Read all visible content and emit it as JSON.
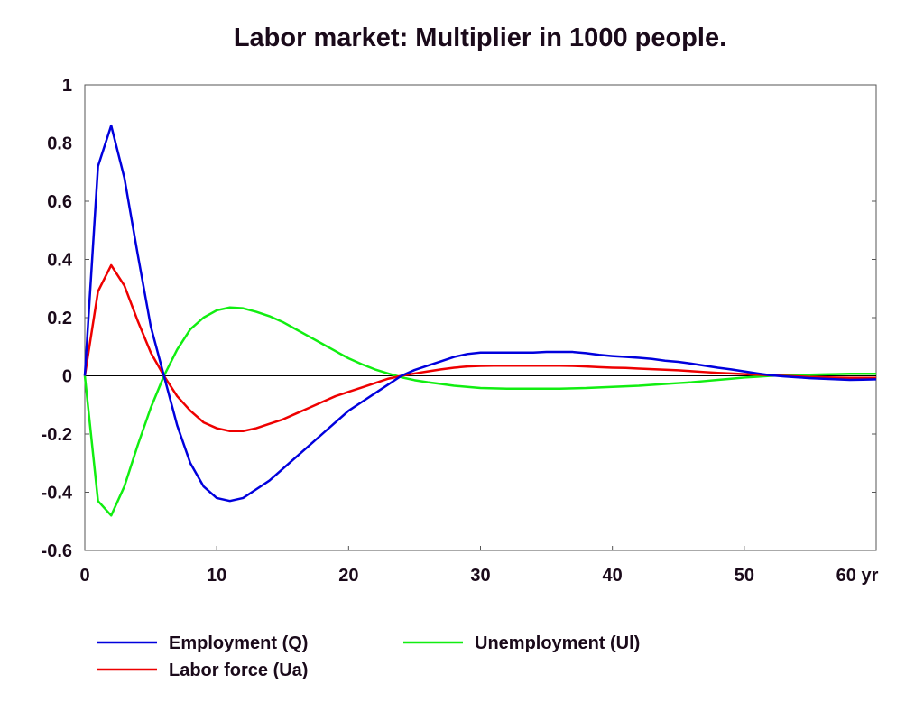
{
  "chart_data": {
    "type": "line",
    "title": "Labor market: Multiplier in 1000 people.",
    "x_unit_label": "yr",
    "xlim": [
      0,
      60
    ],
    "ylim": [
      -0.6,
      1
    ],
    "x_ticks": [
      0,
      10,
      20,
      30,
      40,
      50,
      60
    ],
    "x_tick_labels": [
      "0",
      "10",
      "20",
      "30",
      "40",
      "50",
      "60 yr"
    ],
    "y_ticks": [
      1,
      0.8,
      0.6,
      0.4,
      0.2,
      0,
      -0.2,
      -0.4,
      -0.6
    ],
    "y_tick_labels": [
      "1",
      "0.8",
      "0.6",
      "0.4",
      "0.2",
      "0",
      "-0.2",
      "-0.4",
      "-0.6"
    ],
    "zero_line": true,
    "grid": false,
    "legend_position": "bottom",
    "x": [
      0,
      1,
      2,
      3,
      4,
      5,
      6,
      7,
      8,
      9,
      10,
      11,
      12,
      13,
      14,
      15,
      16,
      17,
      18,
      19,
      20,
      21,
      22,
      23,
      24,
      25,
      26,
      27,
      28,
      29,
      30,
      31,
      32,
      33,
      34,
      35,
      36,
      37,
      38,
      39,
      40,
      41,
      42,
      43,
      44,
      45,
      46,
      47,
      48,
      49,
      50,
      51,
      52,
      53,
      54,
      55,
      56,
      57,
      58,
      59,
      60
    ],
    "series": [
      {
        "name": "Employment (Q)",
        "color": "#0000dd",
        "values": [
          0,
          0.72,
          0.86,
          0.68,
          0.42,
          0.17,
          0.0,
          -0.17,
          -0.3,
          -0.38,
          -0.42,
          -0.43,
          -0.42,
          -0.39,
          -0.36,
          -0.32,
          -0.28,
          -0.24,
          -0.2,
          -0.16,
          -0.12,
          -0.09,
          -0.06,
          -0.03,
          0.0,
          0.02,
          0.035,
          0.05,
          0.065,
          0.075,
          0.08,
          0.08,
          0.08,
          0.08,
          0.08,
          0.082,
          0.082,
          0.082,
          0.078,
          0.072,
          0.068,
          0.065,
          0.062,
          0.058,
          0.052,
          0.048,
          0.042,
          0.035,
          0.028,
          0.022,
          0.015,
          0.008,
          0.002,
          -0.002,
          -0.005,
          -0.008,
          -0.01,
          -0.012,
          -0.014,
          -0.013,
          -0.012
        ]
      },
      {
        "name": "Labor force (Ua)",
        "color": "#ee0000",
        "values": [
          0,
          0.29,
          0.38,
          0.31,
          0.19,
          0.08,
          0.0,
          -0.07,
          -0.12,
          -0.16,
          -0.18,
          -0.19,
          -0.19,
          -0.18,
          -0.165,
          -0.15,
          -0.13,
          -0.11,
          -0.09,
          -0.07,
          -0.055,
          -0.04,
          -0.025,
          -0.01,
          0.0,
          0.008,
          0.015,
          0.022,
          0.028,
          0.032,
          0.034,
          0.035,
          0.035,
          0.035,
          0.035,
          0.035,
          0.035,
          0.034,
          0.032,
          0.03,
          0.028,
          0.027,
          0.025,
          0.023,
          0.021,
          0.019,
          0.016,
          0.013,
          0.01,
          0.008,
          0.006,
          0.004,
          0.002,
          0.0,
          -0.002,
          -0.004,
          -0.005,
          -0.006,
          -0.007,
          -0.007,
          -0.007
        ]
      },
      {
        "name": "Unemployment (Ul)",
        "color": "#11ee11",
        "values": [
          0,
          -0.43,
          -0.48,
          -0.38,
          -0.24,
          -0.11,
          0.0,
          0.09,
          0.16,
          0.2,
          0.225,
          0.235,
          0.232,
          0.22,
          0.205,
          0.185,
          0.16,
          0.135,
          0.11,
          0.085,
          0.06,
          0.04,
          0.022,
          0.008,
          -0.005,
          -0.015,
          -0.022,
          -0.028,
          -0.034,
          -0.038,
          -0.042,
          -0.043,
          -0.044,
          -0.044,
          -0.044,
          -0.044,
          -0.044,
          -0.043,
          -0.042,
          -0.04,
          -0.038,
          -0.036,
          -0.034,
          -0.031,
          -0.028,
          -0.025,
          -0.022,
          -0.018,
          -0.014,
          -0.01,
          -0.006,
          -0.003,
          0.0,
          0.002,
          0.003,
          0.004,
          0.005,
          0.006,
          0.007,
          0.007,
          0.007
        ]
      }
    ]
  },
  "legend": [
    {
      "label": "Employment (Q)",
      "color": "#0000dd"
    },
    {
      "label": "Unemployment (Ul)",
      "color": "#11ee11"
    },
    {
      "label": "Labor force (Ua)",
      "color": "#ee0000"
    }
  ]
}
